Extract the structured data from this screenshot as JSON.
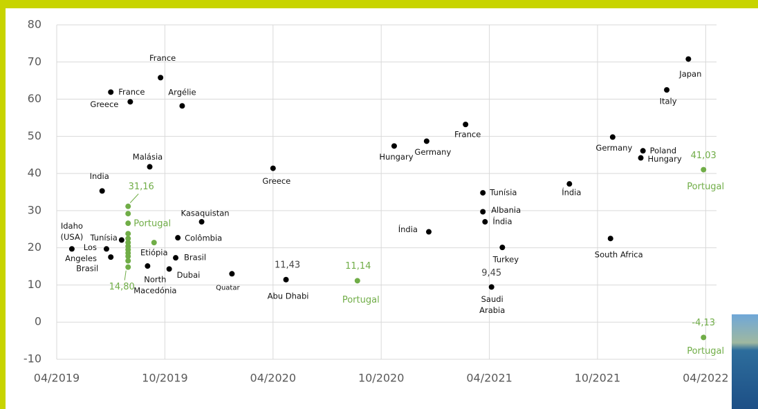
{
  "chart_data": {
    "type": "scatter",
    "xlim": [
      2019.25,
      2022.3
    ],
    "xticks": [
      {
        "value": 2019.25,
        "label": "04/2019"
      },
      {
        "value": 2019.75,
        "label": "10/2019"
      },
      {
        "value": 2020.25,
        "label": "04/2020"
      },
      {
        "value": 2020.75,
        "label": "10/2020"
      },
      {
        "value": 2021.25,
        "label": "04/2021"
      },
      {
        "value": 2021.75,
        "label": "10/2021"
      },
      {
        "value": 2022.25,
        "label": "04/2022"
      }
    ],
    "ylim": [
      -10,
      80
    ],
    "yticks": [
      -10,
      0,
      10,
      20,
      30,
      40,
      50,
      60,
      70,
      80
    ],
    "grid": true,
    "series": [
      {
        "color": "#000000",
        "x": [
          2019.32,
          2019.48,
          2019.5,
          2019.55,
          2019.46,
          2019.5,
          2019.59,
          2019.68,
          2019.73,
          2019.83,
          2019.67,
          2019.77,
          2019.8,
          2019.81,
          2019.92,
          2020.06,
          2020.25,
          2020.31,
          2020.81,
          2020.96,
          2021.14,
          2020.97,
          2021.22,
          2021.22,
          2021.23,
          2021.31,
          2021.26,
          2021.62,
          2021.82,
          2021.81,
          2021.96,
          2021.95,
          2022.07,
          2022.17
        ],
        "values": [
          19.7,
          19.7,
          17.5,
          22.1,
          35.3,
          61.9,
          59.3,
          41.8,
          65.8,
          58.2,
          15.1,
          14.3,
          17.3,
          22.7,
          27.0,
          13.0,
          41.4,
          11.43,
          47.4,
          48.7,
          53.2,
          24.3,
          34.8,
          29.7,
          27.0,
          20.1,
          9.45,
          37.2,
          49.8,
          22.5,
          46.1,
          44.2,
          62.5,
          70.8
        ],
        "value_labels": [
          null,
          null,
          null,
          null,
          null,
          null,
          null,
          null,
          null,
          null,
          null,
          null,
          null,
          null,
          null,
          null,
          null,
          "11,43",
          null,
          null,
          null,
          null,
          null,
          null,
          null,
          null,
          "9,45",
          null,
          null,
          null,
          null,
          null,
          null,
          null
        ],
        "labels": [
          [
            "Idaho",
            "(USA)"
          ],
          [
            "Los",
            "Angeles"
          ],
          "Brasil",
          "Tunísia",
          "India",
          "France",
          "Greece",
          "Malásia",
          "France",
          "Argélie",
          [
            "North",
            "Macedónia"
          ],
          "Dubai",
          "Brasil",
          "Colômbia",
          "Kasaquistan",
          "Quatar",
          "Greece",
          "Abu Dhabi",
          "Hungary",
          "Germany",
          "France",
          "Índia",
          "Tunísia",
          "Albania",
          "Índia",
          "Turkey",
          [
            "Saudi",
            "Arabia"
          ],
          "Índia",
          "Germany",
          "South Africa",
          "Poland",
          "Hungary",
          "Italy",
          "Japan"
        ]
      },
      {
        "color": "#70ad47",
        "x": [
          2019.58,
          2019.58,
          2019.58,
          2019.58,
          2019.58,
          2019.58,
          2019.58,
          2019.58,
          2019.58,
          2019.58,
          2019.58,
          2019.58,
          2019.7,
          2020.64,
          2022.24,
          2022.24
        ],
        "values": [
          31.16,
          29.2,
          26.6,
          23.8,
          22.5,
          21.4,
          20.4,
          19.5,
          18.6,
          17.7,
          16.5,
          14.8,
          21.4,
          11.14,
          41.03,
          -4.13
        ],
        "value_labels": [
          "31,16",
          null,
          null,
          null,
          null,
          null,
          null,
          null,
          null,
          null,
          null,
          "14,80",
          null,
          "11,14",
          "41,03",
          "-4,13"
        ],
        "labels": [
          null,
          null,
          "Portugal",
          null,
          null,
          null,
          null,
          null,
          null,
          null,
          null,
          null,
          "Etiópia",
          "Portugal",
          "Portugal",
          "Portugal"
        ]
      }
    ]
  }
}
